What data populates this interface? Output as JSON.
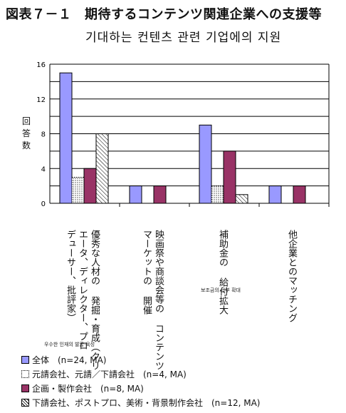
{
  "header": {
    "title": "図表７－１　期待するコンテンツ関連企業への支援等",
    "subtitle": "기대하는 컨텐츠 관련 기업에의 지원"
  },
  "chart_data": {
    "type": "bar",
    "title": "図表７－１　期待するコンテンツ関連企業への支援等",
    "ylabel": "回答数",
    "ylim": [
      0,
      16
    ],
    "yticks": [
      0,
      4,
      8,
      12,
      16
    ],
    "grid": true,
    "legend_position": "bottom",
    "categories": [
      "優秀な人材の発掘・育成（クリエータ、ディレクター、プロデューサー、批評家）",
      "映画祭や商談会等のコンテンツマーケットの開催",
      "補助金の給付拡大",
      "他企業とのマッチング"
    ],
    "category_lines": [
      [
        "優秀な人材の 発掘・育成（クリ",
        "エータ、ディレクター、プロ",
        "デューサー、批評家）"
      ],
      [
        "映画祭や商談会等の コンテンツ",
        "マーケットの 開催"
      ],
      [
        "補助金の 給付拡大"
      ],
      [
        "他企業とのマッチング"
      ]
    ],
    "series": [
      {
        "name": "全体　(n=24, MA)",
        "values": [
          15,
          2,
          9,
          2
        ],
        "color": "#9999ff",
        "pattern": "solid"
      },
      {
        "name": "元請会社、元請／下請会社　(n=4, MA)",
        "values": [
          3,
          0,
          2,
          0
        ],
        "color": "#ffffff",
        "pattern": "dotted"
      },
      {
        "name": "企画・製作会社　(n=8, MA)",
        "values": [
          4,
          2,
          6,
          2
        ],
        "color": "#993366",
        "pattern": "solid"
      },
      {
        "name": "下請会社、ポストプロ、美術・背景制作会社　(n=12, MA)",
        "values": [
          8,
          0,
          1,
          0
        ],
        "color": "#ffffff",
        "pattern": "hatch"
      }
    ],
    "annotations": [
      "우수한 인재의 발굴·육성",
      "보조금의 급부 확대"
    ]
  },
  "colors": {
    "axis": "#000000",
    "grid": "#000000"
  }
}
